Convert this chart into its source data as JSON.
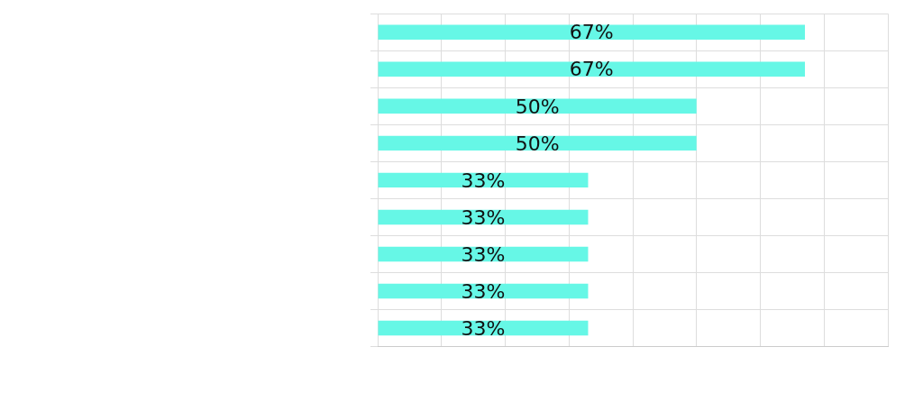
{
  "chart_data": {
    "type": "bar",
    "orientation": "horizontal",
    "categories": [
      null,
      null,
      null,
      null,
      null,
      null,
      null,
      null,
      null
    ],
    "values": [
      67,
      67,
      50,
      50,
      33,
      33,
      33,
      33,
      33
    ],
    "value_labels": [
      "67%",
      "67%",
      "50%",
      "50%",
      "33%",
      "33%",
      "33%",
      "33%",
      "33%"
    ],
    "color": "#66f7e6",
    "xlim": [
      0,
      80
    ],
    "xticks": [
      {
        "value": 0,
        "label": null
      },
      {
        "value": 10,
        "label": null
      },
      {
        "value": 20,
        "label": null
      },
      {
        "value": 30,
        "label": null
      },
      {
        "value": 40,
        "label": null
      },
      {
        "value": 50,
        "label": null
      },
      {
        "value": 60,
        "label": null
      },
      {
        "value": 70,
        "label": null
      },
      {
        "value": 80,
        "label": null
      }
    ],
    "grid": true
  }
}
